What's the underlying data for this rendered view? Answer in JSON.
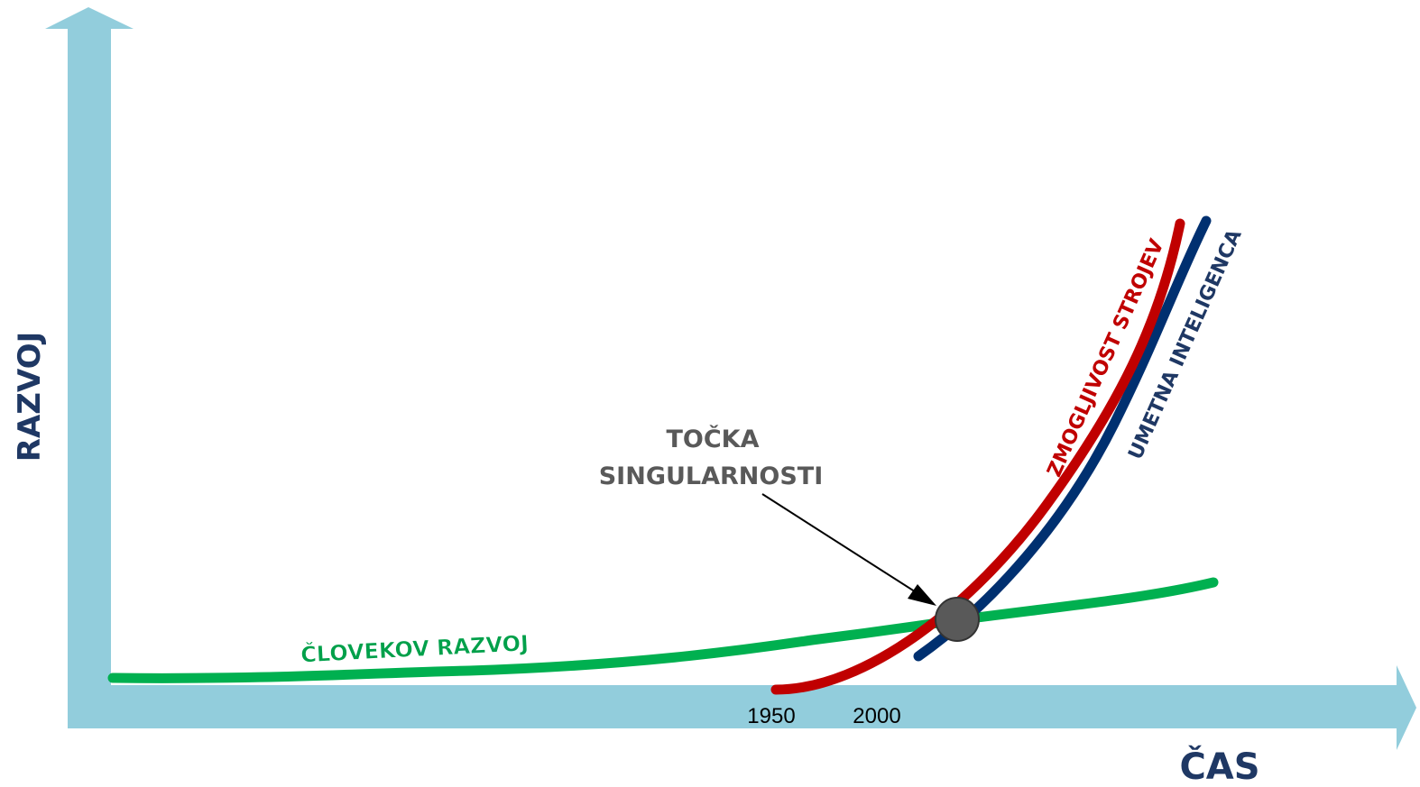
{
  "axes": {
    "y_label": "RAZVOJ",
    "x_label": "ČAS"
  },
  "x_ticks": [
    "1950",
    "2000"
  ],
  "annotation": {
    "lines": [
      "TOČKA",
      "SINGULARNOSTI"
    ]
  },
  "curves": [
    {
      "label": "ČLOVEKOV RAZVOJ"
    },
    {
      "label": "ZMOGLJIVOST STROJEV"
    },
    {
      "label": "UMETNA INTELIGENCA"
    }
  ]
}
